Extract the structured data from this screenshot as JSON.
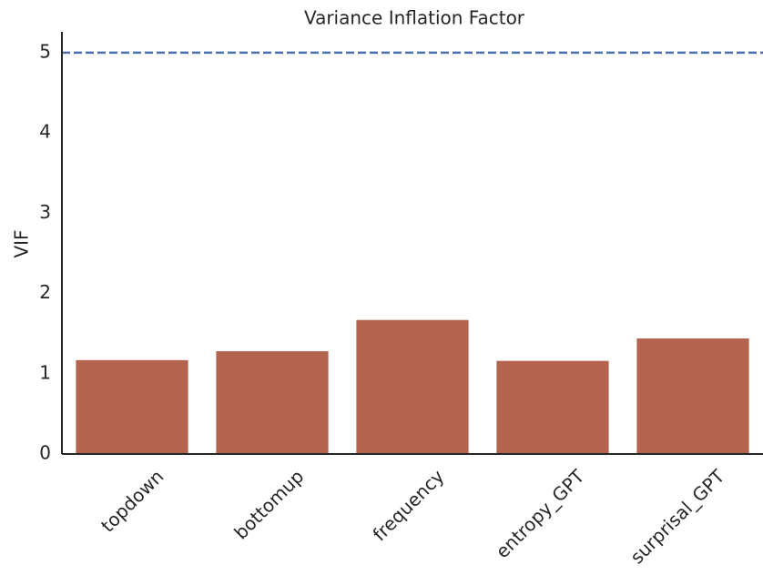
{
  "chart_data": {
    "type": "bar",
    "title": "Variance Inflation Factor",
    "ylabel": "VIF",
    "categories": [
      "topdown",
      "bottomup",
      "frequency",
      "entropy_GPT",
      "surprisal_GPT"
    ],
    "values": [
      1.17,
      1.28,
      1.67,
      1.16,
      1.44
    ],
    "color": "#b4634e",
    "ylim": [
      0,
      5.26
    ],
    "yticks": [
      0,
      1,
      2,
      3,
      4,
      5
    ],
    "grid": false,
    "threshold": 5,
    "threshold_color": "#4c72b0"
  }
}
